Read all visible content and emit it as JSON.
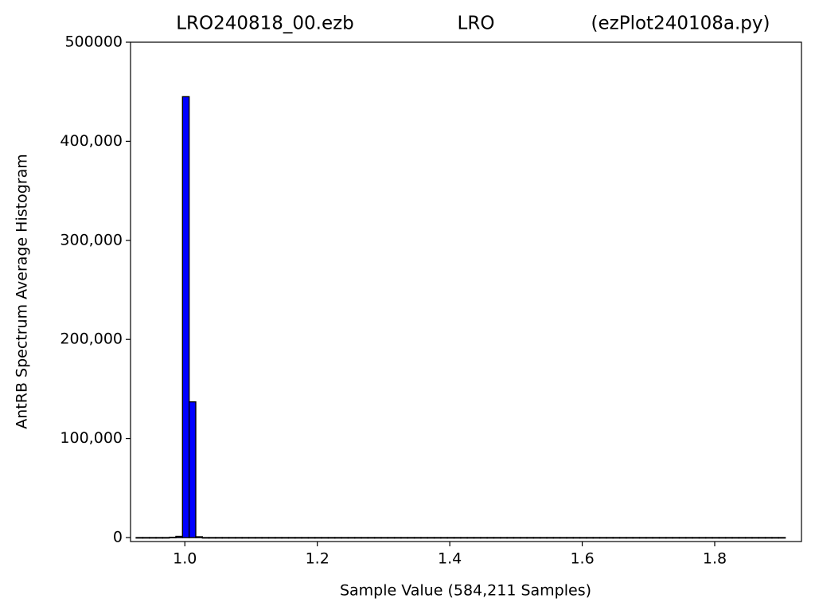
{
  "chart_data": {
    "type": "histogram",
    "title": [
      "LRO240818_00.ezb",
      "LRO",
      "(ezPlot240108a.py)"
    ],
    "x_label": "Sample Value (584,211 Samples)",
    "y_label": "AntRB Spectrum Average Histogram",
    "bins": [
      0.9265,
      0.9365,
      0.9465,
      0.9565,
      0.9665,
      0.9765,
      0.9865,
      0.9965,
      1.0065,
      1.0165,
      1.0265,
      1.0365,
      1.0465,
      1.0565,
      1.0665,
      1.0765,
      1.0865,
      1.0965,
      1.1065,
      1.1165,
      1.1265,
      1.1365,
      1.1465,
      1.1565,
      1.1665,
      1.1765,
      1.1865,
      1.1965,
      1.2065,
      1.2165,
      1.2265,
      1.2365,
      1.2465,
      1.2565,
      1.2665,
      1.2765,
      1.2865,
      1.2965,
      1.3065,
      1.3165,
      1.3265,
      1.3365,
      1.3465,
      1.3565,
      1.3665,
      1.3765,
      1.3865,
      1.3965,
      1.4065,
      1.4165,
      1.4265,
      1.4365,
      1.4465,
      1.4565,
      1.4665,
      1.4765,
      1.4865,
      1.4965,
      1.5065,
      1.5165,
      1.5265,
      1.5365,
      1.5465,
      1.5565,
      1.5665,
      1.5765,
      1.5865,
      1.5965,
      1.6065,
      1.6165,
      1.6265,
      1.6365,
      1.6465,
      1.6565,
      1.6665,
      1.6765,
      1.6865,
      1.6965,
      1.7065,
      1.7165,
      1.7265,
      1.7365,
      1.7465,
      1.7565,
      1.7665,
      1.7765,
      1.7865,
      1.7965,
      1.8065,
      1.8165,
      1.8265,
      1.8365,
      1.8465,
      1.8565,
      1.8665,
      1.8765,
      1.8865,
      1.8965,
      1.9065
    ],
    "values": [
      0,
      0,
      0,
      0,
      0,
      300,
      1200,
      445000,
      137000,
      800,
      0,
      0,
      0,
      0,
      0,
      0,
      0,
      0,
      0,
      0,
      0,
      0,
      0,
      0,
      0,
      0,
      0,
      0,
      0,
      0,
      0,
      0,
      0,
      0,
      0,
      0,
      0,
      0,
      0,
      0,
      0,
      0,
      0,
      0,
      0,
      0,
      0,
      0,
      0,
      0,
      0,
      0,
      0,
      0,
      0,
      0,
      0,
      0,
      0,
      0,
      0,
      0,
      0,
      0,
      0,
      0,
      0,
      0,
      0,
      0,
      0,
      0,
      0,
      0,
      0,
      0,
      0,
      0,
      0,
      0,
      0,
      0,
      0,
      0,
      0,
      0,
      0,
      0,
      0,
      0,
      0,
      0,
      0,
      0,
      0,
      0,
      0,
      0
    ],
    "color": "#0000ff",
    "edgecolor": "#000000",
    "xlim": [
      0.918,
      1.931
    ],
    "xticks": [
      1.0,
      1.2,
      1.4,
      1.6,
      1.8
    ],
    "xtick_labels_override": null,
    "ylim": [
      -4000,
      500000
    ],
    "yticks": [
      0,
      {
        "value": 100000,
        "label": "100,000"
      },
      {
        "value": 200000,
        "label": "200,000"
      },
      {
        "value": 300000,
        "label": "300,000"
      },
      {
        "value": 400000,
        "label": "400,000"
      },
      500000
    ],
    "grid": false
  }
}
